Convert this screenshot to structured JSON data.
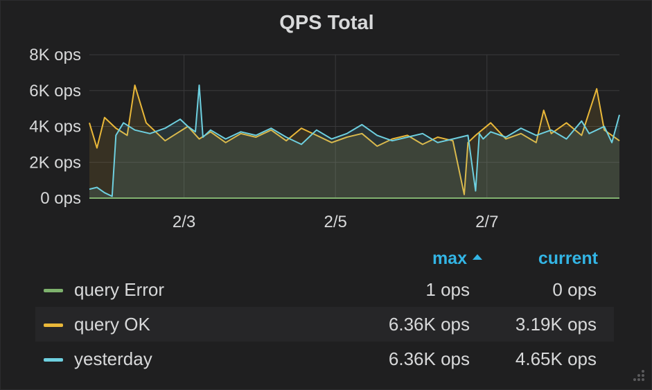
{
  "panel": {
    "title": "QPS Total"
  },
  "legend": {
    "header_max": "max",
    "header_current": "current",
    "sort_icon": "caret-up-icon",
    "rows": [
      {
        "name": "query Error",
        "max": "1 ops",
        "current": "0 ops",
        "color": "#7eb26d"
      },
      {
        "name": "query OK",
        "max": "6.36K ops",
        "current": "3.19K ops",
        "color": "#eab839"
      },
      {
        "name": "yesterday",
        "max": "6.36K ops",
        "current": "4.65K ops",
        "color": "#6ed0e0"
      }
    ]
  },
  "chart_data": {
    "type": "line",
    "title": "QPS Total",
    "xlabel": "",
    "ylabel": "",
    "y_unit": "ops",
    "x_range": [
      "2/1 18:00",
      "2/8 18:00"
    ],
    "ylim": [
      0,
      8000
    ],
    "y_ticks": [
      "0 ops",
      "2K ops",
      "4K ops",
      "6K ops",
      "8K ops"
    ],
    "x_ticks": [
      "2/3",
      "2/5",
      "2/7"
    ],
    "grid": true,
    "fill_area": true,
    "series": [
      {
        "name": "query Error",
        "color": "#7eb26d",
        "x_days": [
          0,
          7
        ],
        "values": [
          0,
          0
        ]
      },
      {
        "name": "query OK",
        "color": "#eab839",
        "x_days": [
          0.0,
          0.1,
          0.2,
          0.35,
          0.5,
          0.6,
          0.75,
          0.85,
          1.0,
          1.15,
          1.3,
          1.45,
          1.6,
          1.8,
          2.0,
          2.2,
          2.4,
          2.6,
          2.8,
          3.0,
          3.2,
          3.4,
          3.6,
          3.8,
          4.0,
          4.2,
          4.4,
          4.6,
          4.8,
          4.95,
          5.0,
          5.1,
          5.3,
          5.5,
          5.7,
          5.9,
          6.0,
          6.1,
          6.3,
          6.5,
          6.7,
          6.8,
          6.9,
          7.0
        ],
        "values": [
          4200,
          2800,
          4500,
          3900,
          3500,
          6300,
          4200,
          3800,
          3200,
          3600,
          4000,
          3300,
          3700,
          3100,
          3600,
          3400,
          3800,
          3200,
          3900,
          3500,
          3100,
          3400,
          3600,
          2900,
          3300,
          3500,
          3000,
          3400,
          3200,
          200,
          3100,
          3500,
          4200,
          3300,
          3600,
          3100,
          4900,
          3600,
          4200,
          3500,
          6100,
          3800,
          3500,
          3200
        ]
      },
      {
        "name": "yesterday",
        "color": "#6ed0e0",
        "x_days": [
          0.0,
          0.1,
          0.2,
          0.3,
          0.35,
          0.45,
          0.6,
          0.8,
          1.0,
          1.2,
          1.3,
          1.4,
          1.45,
          1.5,
          1.6,
          1.8,
          2.0,
          2.2,
          2.4,
          2.6,
          2.8,
          3.0,
          3.2,
          3.4,
          3.6,
          3.8,
          4.0,
          4.2,
          4.4,
          4.6,
          4.8,
          5.0,
          5.1,
          5.15,
          5.2,
          5.3,
          5.5,
          5.7,
          5.9,
          6.1,
          6.3,
          6.5,
          6.6,
          6.8,
          6.9,
          7.0
        ],
        "values": [
          500,
          600,
          300,
          100,
          3500,
          4200,
          3800,
          3600,
          3900,
          4400,
          4000,
          3700,
          6300,
          3400,
          3800,
          3300,
          3700,
          3500,
          3900,
          3400,
          3000,
          3800,
          3300,
          3600,
          4100,
          3500,
          3200,
          3400,
          3600,
          3100,
          3300,
          3500,
          400,
          3600,
          3300,
          3700,
          3400,
          3900,
          3500,
          3800,
          3300,
          4300,
          3600,
          4000,
          3100,
          4650
        ]
      }
    ]
  }
}
